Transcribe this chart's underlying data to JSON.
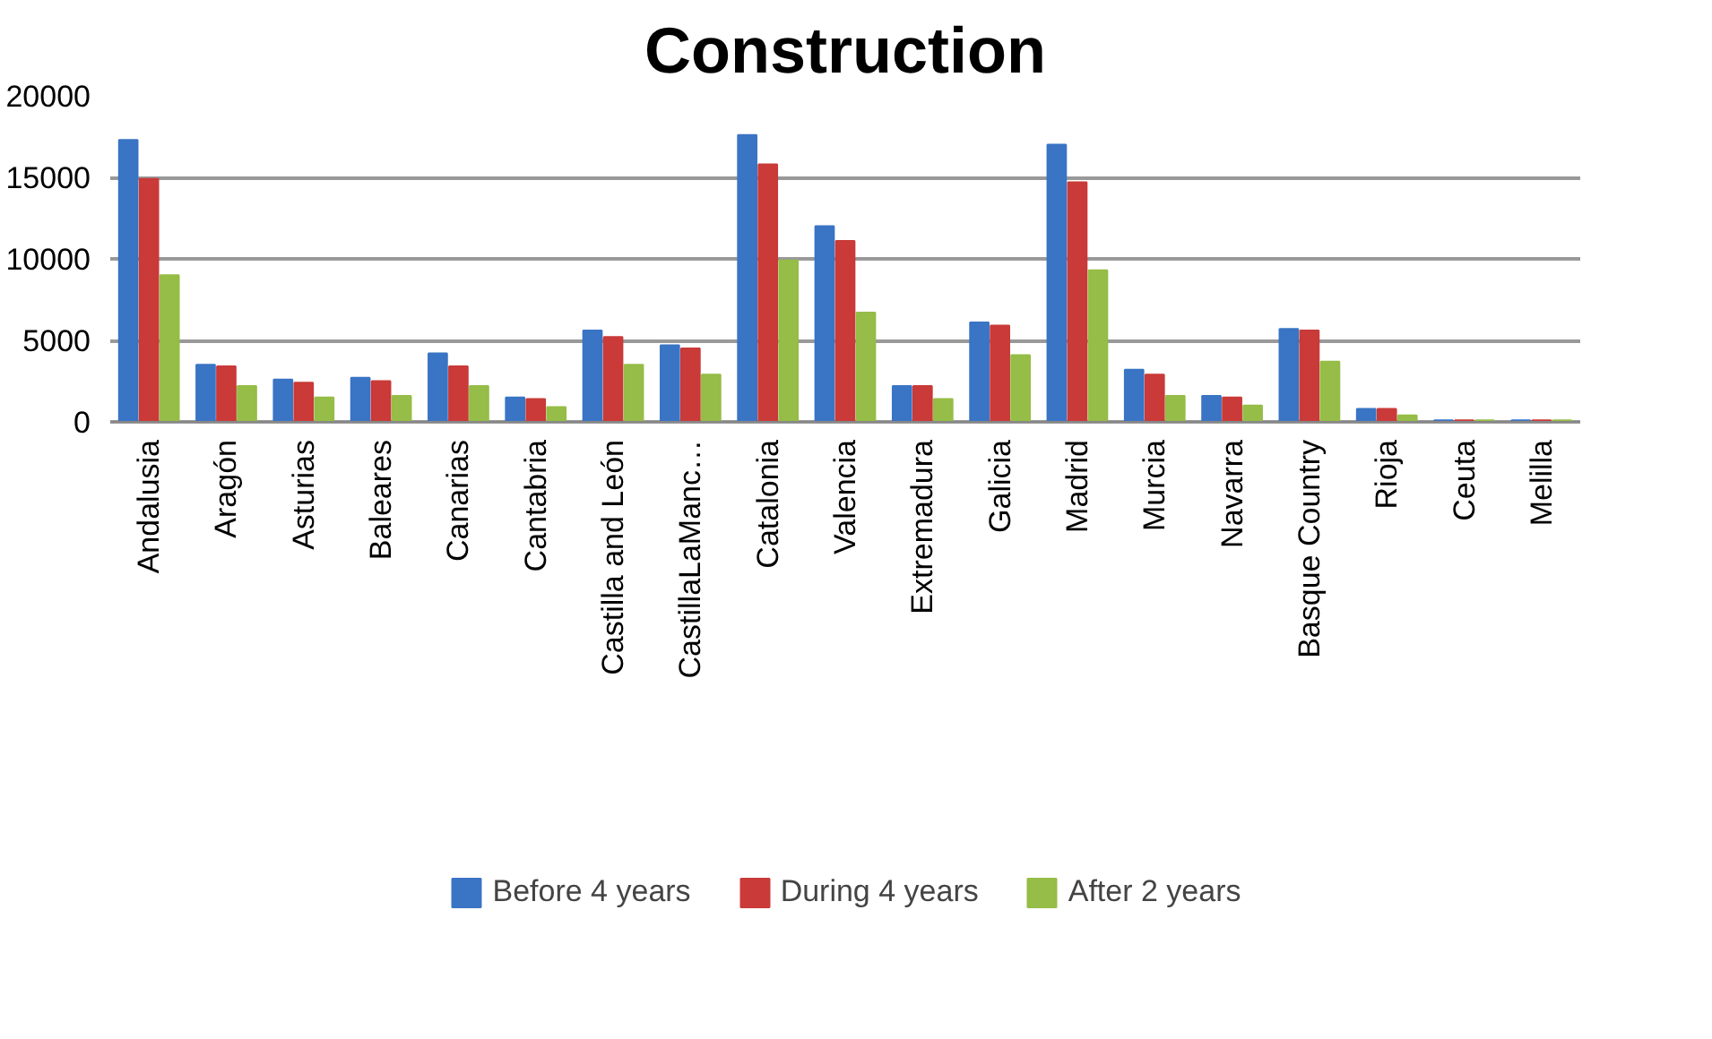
{
  "chart_data": {
    "type": "bar",
    "title": "Construction",
    "categories": [
      "Andalusia",
      "Aragón",
      "Asturias",
      "Baleares",
      "Canarias",
      "Cantabria",
      "Castilla and León",
      "CastillaLaManc…",
      "Catalonia",
      "Valencia",
      "Extremadura",
      "Galicia",
      "Madrid",
      "Murcia",
      "Navarra",
      "Basque Country",
      "Rioja",
      "Ceuta",
      "Melilla"
    ],
    "series": [
      {
        "name": "Before 4 years",
        "color": "#3a74c4",
        "values": [
          17300,
          3500,
          2600,
          2700,
          4200,
          1500,
          5600,
          4700,
          17600,
          12000,
          2200,
          6100,
          17000,
          3200,
          1600,
          5700,
          800,
          100,
          100
        ]
      },
      {
        "name": "During 4 years",
        "color": "#c93a38",
        "values": [
          14900,
          3400,
          2400,
          2500,
          3400,
          1400,
          5200,
          4500,
          15800,
          11100,
          2200,
          5900,
          14700,
          2900,
          1500,
          5600,
          800,
          100,
          100
        ]
      },
      {
        "name": "After 2 years",
        "color": "#95bd47",
        "values": [
          9000,
          2200,
          1500,
          1600,
          2200,
          900,
          3500,
          2900,
          9900,
          6700,
          1400,
          4100,
          9300,
          1600,
          1000,
          3700,
          400,
          100,
          100
        ]
      }
    ],
    "ylim": [
      0,
      20000
    ],
    "yticks": [
      0,
      5000,
      10000,
      15000,
      20000
    ],
    "grid": "y",
    "legend": "bottom"
  }
}
